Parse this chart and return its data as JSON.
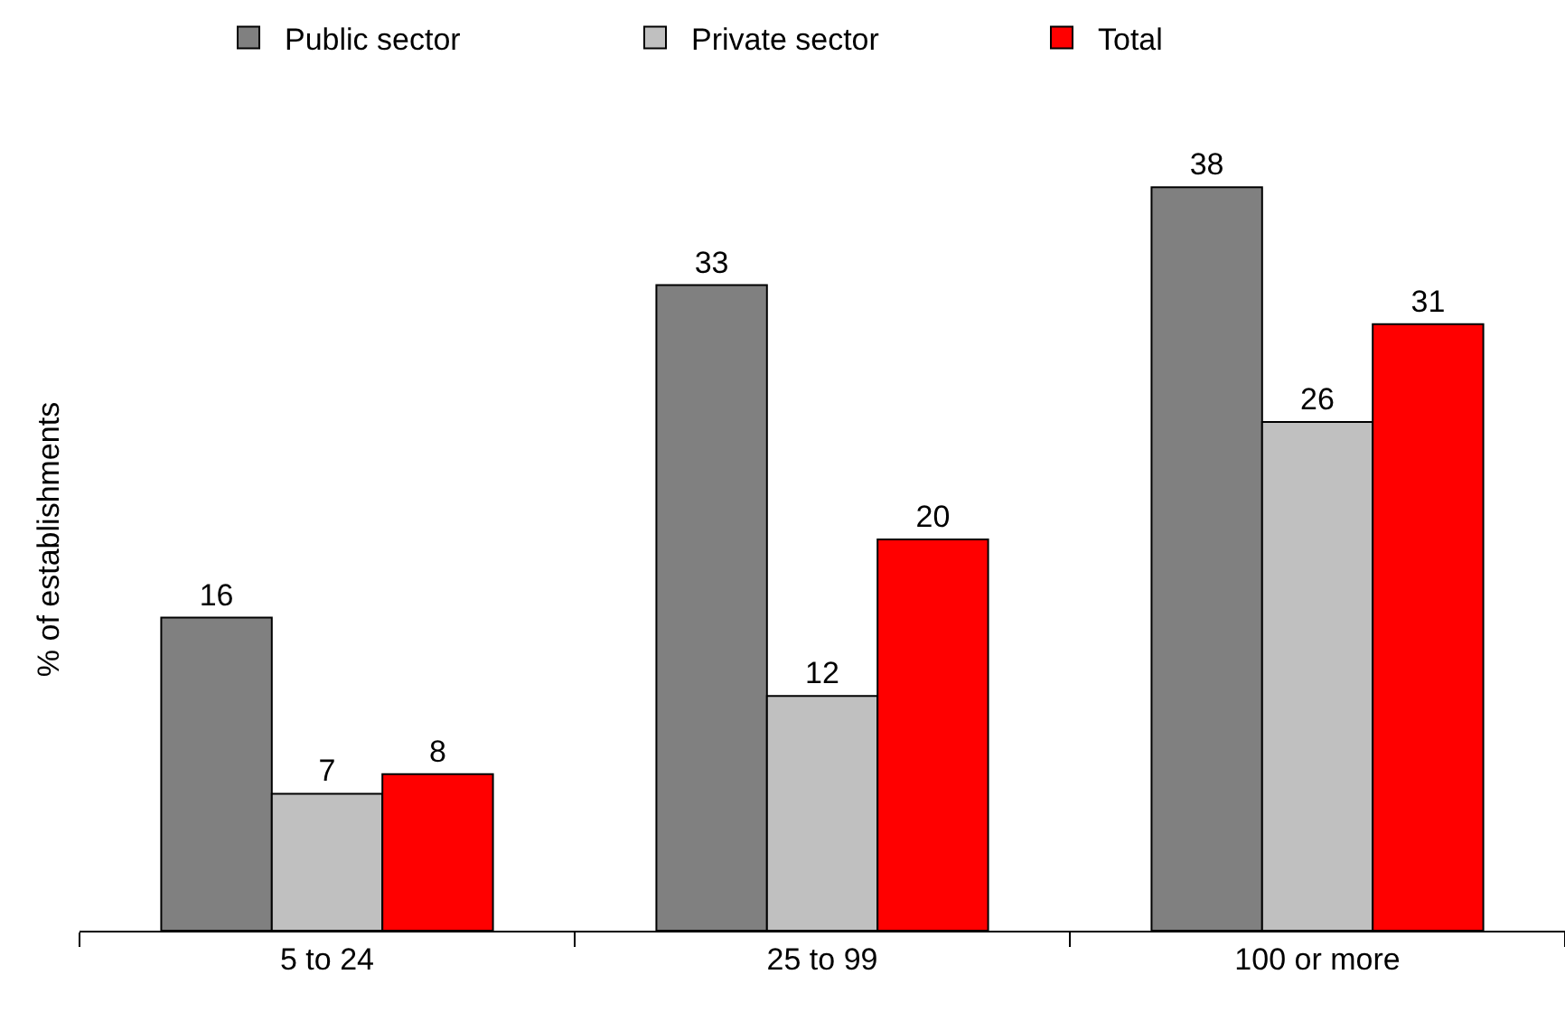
{
  "chart_data": {
    "type": "bar",
    "ylabel": "% of establishments",
    "categories": [
      "5 to 24",
      "25 to 99",
      "100 or more"
    ],
    "series": [
      {
        "name": "Public sector",
        "color": "#808080",
        "values": [
          16,
          33,
          38
        ]
      },
      {
        "name": "Private sector",
        "color": "#c0c0c0",
        "values": [
          7,
          12,
          26
        ]
      },
      {
        "name": "Total",
        "color": "#ff0000",
        "values": [
          8,
          20,
          31
        ]
      }
    ],
    "data_labels": true,
    "legend": "top"
  }
}
